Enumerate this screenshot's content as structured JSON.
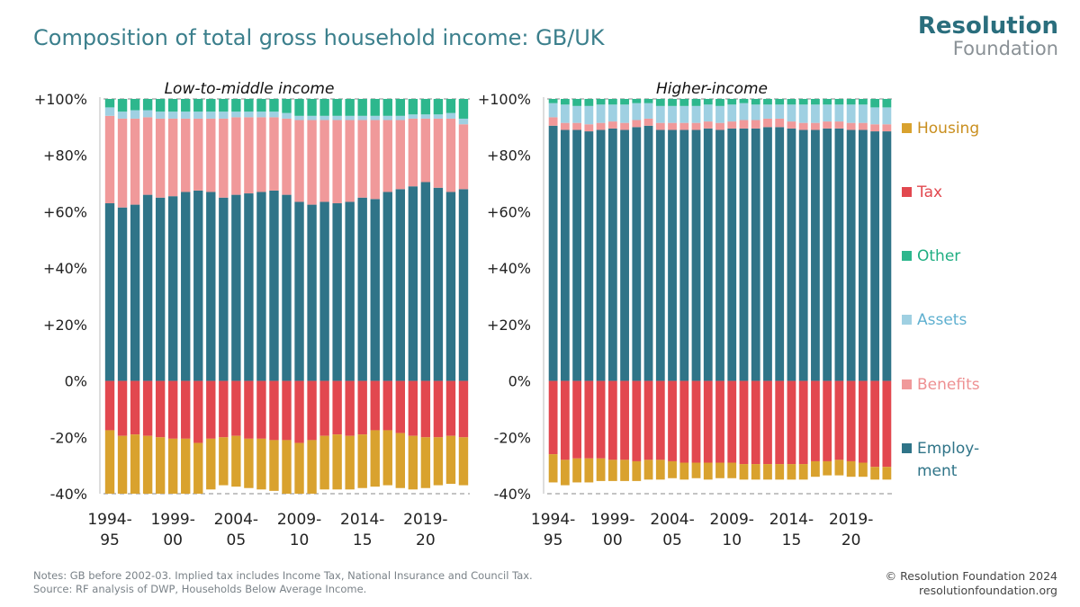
{
  "title": "Composition of total gross household income: GB/UK",
  "logo": {
    "line1": "Resolution",
    "line2": "Foundation"
  },
  "notes": {
    "line1": "Notes: GB before 2002-03. Implied tax includes Income Tax, National Insurance and Council Tax.",
    "line2": "Source: RF analysis of DWP, Households Below Average Income."
  },
  "credits": {
    "line1": "© Resolution Foundation 2024",
    "line2": "resolutionfoundation.org"
  },
  "colors": {
    "Employment": "#2f7488",
    "Benefits": "#f0999a",
    "Assets": "#9fd0e2",
    "Other": "#2db78d",
    "Tax": "#e2484f",
    "Housing": "#d9a22e",
    "legend_text": {
      "Housing": "#c98f1f",
      "Tax": "#e2484f",
      "Other": "#1fae82",
      "Assets": "#5fb0d0",
      "Benefits": "#ee9092",
      "Employment": "#2f7488"
    }
  },
  "chart_data": [
    {
      "type": "bar",
      "stacked": true,
      "title": "Low-to-middle income",
      "ylim": [
        -40,
        100
      ],
      "yticks": [
        "+100%",
        "+80%",
        "+60%",
        "+40%",
        "+20%",
        "0%",
        "-20%",
        "-40%"
      ],
      "ytick_values": [
        100,
        80,
        60,
        40,
        20,
        0,
        -20,
        -40
      ],
      "xticks": [
        {
          "line1": "1994-",
          "line2": "95",
          "index": 0
        },
        {
          "line1": "1999-",
          "line2": "00",
          "index": 5
        },
        {
          "line1": "2004-",
          "line2": "05",
          "index": 10
        },
        {
          "line1": "2009-",
          "line2": "10",
          "index": 15
        },
        {
          "line1": "2014-",
          "line2": "15",
          "index": 20
        },
        {
          "line1": "2019-",
          "line2": "20",
          "index": 25
        }
      ],
      "categories": [
        "1994-95",
        "1995-96",
        "1996-97",
        "1997-98",
        "1998-99",
        "1999-00",
        "2000-01",
        "2001-02",
        "2002-03",
        "2003-04",
        "2004-05",
        "2005-06",
        "2006-07",
        "2007-08",
        "2008-09",
        "2009-10",
        "2010-11",
        "2011-12",
        "2012-13",
        "2013-14",
        "2014-15",
        "2015-16",
        "2016-17",
        "2017-18",
        "2018-19",
        "2019-20",
        "2020-21",
        "2021-22",
        "2022-23"
      ],
      "positive_series": [
        {
          "name": "Employment",
          "values": [
            63,
            61.5,
            62.5,
            66,
            65,
            65.5,
            67,
            67.5,
            67,
            65,
            66,
            66.5,
            67,
            67.5,
            66,
            63.5,
            62.5,
            63.5,
            63,
            63.5,
            65,
            64.5,
            67,
            68,
            69,
            70.5,
            68.5,
            67,
            68
          ]
        },
        {
          "name": "Benefits",
          "values": [
            31,
            31.5,
            30.5,
            27.5,
            28,
            27.5,
            26,
            25.5,
            26,
            28,
            27.5,
            27,
            26.5,
            26,
            27,
            29,
            30,
            29,
            29.5,
            29,
            27.5,
            28,
            25.5,
            24.5,
            24,
            22.5,
            24.5,
            26,
            23
          ]
        },
        {
          "name": "Assets",
          "values": [
            3,
            2.5,
            3,
            2.5,
            2.5,
            2.5,
            2.5,
            2.5,
            2.5,
            2.5,
            2,
            2,
            2,
            2,
            2,
            1.5,
            1.5,
            1.5,
            1.5,
            1.5,
            1.5,
            1.5,
            1.5,
            1.5,
            1.5,
            1.5,
            1.5,
            2,
            2
          ]
        },
        {
          "name": "Other",
          "values": [
            3,
            4.5,
            4,
            4,
            4.5,
            4.5,
            4.5,
            4.5,
            4.5,
            4.5,
            4.5,
            4.5,
            4.5,
            4.5,
            5,
            6,
            6,
            6,
            6,
            6,
            6,
            6,
            6,
            6,
            5.5,
            5.5,
            5.5,
            5,
            7
          ]
        }
      ],
      "negative_series": [
        {
          "name": "Tax",
          "values": [
            17.5,
            19.5,
            19,
            19.5,
            20,
            20.5,
            20.5,
            22,
            20.5,
            20,
            19.5,
            20.5,
            20.5,
            21,
            21,
            22,
            21,
            19.5,
            19,
            19.5,
            19,
            17.5,
            17.5,
            18.5,
            19.5,
            20,
            20,
            19.5,
            20
          ]
        },
        {
          "name": "Housing",
          "values": [
            22.5,
            20.5,
            21,
            20.5,
            20,
            19.5,
            19.5,
            18,
            18,
            17,
            18,
            17.5,
            18,
            18,
            19,
            18,
            19,
            19,
            19.5,
            19,
            19,
            20,
            19.5,
            19.5,
            19,
            18,
            17,
            17,
            17
          ]
        }
      ]
    },
    {
      "type": "bar",
      "stacked": true,
      "title": "Higher-income",
      "ylim": [
        -40,
        100
      ],
      "yticks": [
        "+100%",
        "+80%",
        "+60%",
        "+40%",
        "+20%",
        "0%",
        "-20%",
        "-40%"
      ],
      "ytick_values": [
        100,
        80,
        60,
        40,
        20,
        0,
        -20,
        -40
      ],
      "xticks": [
        {
          "line1": "1994-",
          "line2": "95",
          "index": 0
        },
        {
          "line1": "1999-",
          "line2": "00",
          "index": 5
        },
        {
          "line1": "2004-",
          "line2": "05",
          "index": 10
        },
        {
          "line1": "2009-",
          "line2": "10",
          "index": 15
        },
        {
          "line1": "2014-",
          "line2": "15",
          "index": 20
        },
        {
          "line1": "2019-",
          "line2": "20",
          "index": 25
        }
      ],
      "categories": [
        "1994-95",
        "1995-96",
        "1996-97",
        "1997-98",
        "1998-99",
        "1999-00",
        "2000-01",
        "2001-02",
        "2002-03",
        "2003-04",
        "2004-05",
        "2005-06",
        "2006-07",
        "2007-08",
        "2008-09",
        "2009-10",
        "2010-11",
        "2011-12",
        "2012-13",
        "2013-14",
        "2014-15",
        "2015-16",
        "2016-17",
        "2017-18",
        "2018-19",
        "2019-20",
        "2020-21",
        "2021-22",
        "2022-23"
      ],
      "positive_series": [
        {
          "name": "Employment",
          "values": [
            90.5,
            89,
            89,
            88.5,
            89,
            89.5,
            89,
            90,
            90.5,
            89,
            89,
            89,
            89,
            89.5,
            89,
            89.5,
            89.5,
            89.5,
            90,
            90,
            89.5,
            89,
            89,
            89.5,
            89.5,
            89,
            89,
            88.5,
            88.5
          ]
        },
        {
          "name": "Benefits",
          "values": [
            3,
            2.5,
            2.5,
            2.5,
            2.5,
            2.5,
            2.5,
            2.5,
            2.5,
            2.5,
            2.5,
            2.5,
            2.5,
            2.5,
            2.5,
            2.5,
            3,
            3,
            3,
            3,
            2.5,
            2.5,
            2.5,
            2.5,
            2.5,
            2.5,
            2.5,
            2.5,
            2.5
          ]
        },
        {
          "name": "Assets",
          "values": [
            5,
            6.5,
            6,
            6.5,
            6.5,
            6,
            6.5,
            6,
            5.5,
            6,
            6,
            6,
            6,
            6,
            6,
            6,
            6,
            5.5,
            5,
            5,
            6,
            6.5,
            6.5,
            6,
            6,
            6.5,
            6.5,
            6,
            6
          ]
        },
        {
          "name": "Other",
          "values": [
            1.5,
            2,
            2.5,
            2.5,
            2,
            2,
            2,
            1.5,
            1.5,
            2.5,
            2.5,
            2.5,
            2.5,
            2,
            2.5,
            2,
            1.5,
            2,
            2,
            2,
            2,
            2,
            2,
            2,
            2,
            2,
            2,
            3,
            3
          ]
        }
      ],
      "negative_series": [
        {
          "name": "Tax",
          "values": [
            26,
            28,
            27.5,
            27.5,
            27.5,
            28,
            28,
            28.5,
            28,
            28,
            28.5,
            29,
            29,
            29,
            29,
            29,
            29.5,
            29.5,
            29.5,
            29.5,
            29.5,
            29.5,
            28.5,
            28.5,
            28,
            28.5,
            29,
            30.5,
            30.5
          ]
        },
        {
          "name": "Housing",
          "values": [
            10,
            9,
            8.5,
            8.5,
            8,
            7.5,
            7.5,
            7,
            7,
            7,
            6,
            6,
            5.5,
            6,
            5.5,
            5.5,
            5.5,
            5.5,
            5.5,
            5.5,
            5.5,
            5.5,
            5.5,
            5,
            5.5,
            5.5,
            5,
            4.5,
            4.5
          ]
        }
      ]
    }
  ],
  "legend": [
    "Housing",
    "Tax",
    "Other",
    "Assets",
    "Benefits",
    "Employ-|ment"
  ]
}
